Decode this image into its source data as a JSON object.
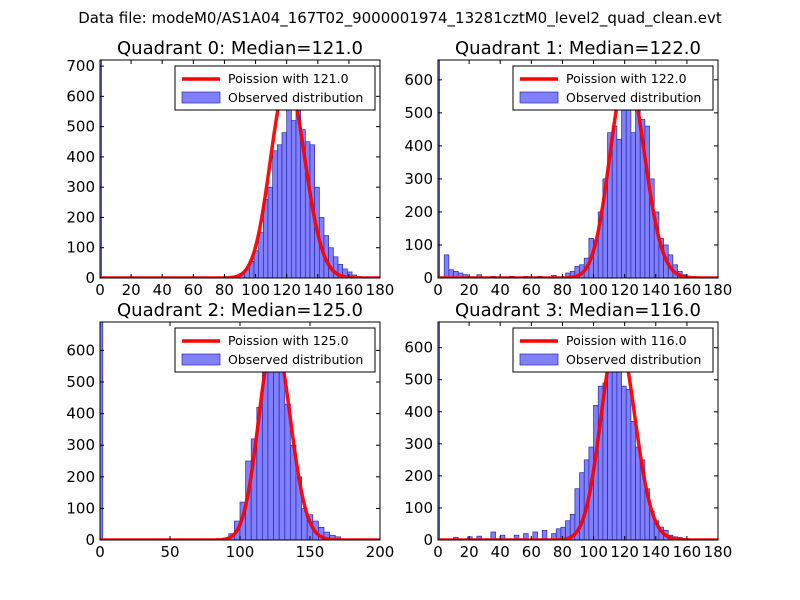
{
  "suptitle": "Data file: modeM0/AS1A04_167T02_9000001974_13281cztM0_level2_quad_clean.evt",
  "colors": {
    "bar_fill": "#7f7fff",
    "bar_edge": "#2b2b9f",
    "poisson_line": "#ff0000",
    "axes": "#000000",
    "background": "#ffffff"
  },
  "chart_data": [
    {
      "type": "bar",
      "title": "Quadrant 0: Median=121.0",
      "median": 121.0,
      "xlim": [
        0,
        180
      ],
      "ylim": [
        0,
        720
      ],
      "xticks": [
        0,
        20,
        40,
        60,
        80,
        100,
        120,
        140,
        160,
        180
      ],
      "yticks": [
        0,
        100,
        200,
        300,
        400,
        500,
        600,
        700
      ],
      "legend": {
        "placement": "top-right",
        "line_label": "Poission with 121.0",
        "bar_label": "Observed distribution"
      },
      "bins": [
        {
          "x0": 0,
          "x1": 1,
          "count": 720
        },
        {
          "x0": 84,
          "x1": 87,
          "count": 5
        },
        {
          "x0": 87,
          "x1": 90,
          "count": 8
        },
        {
          "x0": 90,
          "x1": 93,
          "count": 15
        },
        {
          "x0": 93,
          "x1": 96,
          "count": 28
        },
        {
          "x0": 96,
          "x1": 99,
          "count": 55
        },
        {
          "x0": 99,
          "x1": 102,
          "count": 90
        },
        {
          "x0": 102,
          "x1": 105,
          "count": 150
        },
        {
          "x0": 105,
          "x1": 108,
          "count": 260
        },
        {
          "x0": 108,
          "x1": 111,
          "count": 300
        },
        {
          "x0": 111,
          "x1": 114,
          "count": 420
        },
        {
          "x0": 114,
          "x1": 117,
          "count": 440
        },
        {
          "x0": 117,
          "x1": 120,
          "count": 480
        },
        {
          "x0": 120,
          "x1": 123,
          "count": 650
        },
        {
          "x0": 123,
          "x1": 126,
          "count": 520
        },
        {
          "x0": 126,
          "x1": 129,
          "count": 610
        },
        {
          "x0": 129,
          "x1": 132,
          "count": 490
        },
        {
          "x0": 132,
          "x1": 135,
          "count": 450
        },
        {
          "x0": 135,
          "x1": 138,
          "count": 440
        },
        {
          "x0": 138,
          "x1": 141,
          "count": 300
        },
        {
          "x0": 141,
          "x1": 144,
          "count": 200
        },
        {
          "x0": 144,
          "x1": 147,
          "count": 140
        },
        {
          "x0": 147,
          "x1": 150,
          "count": 100
        },
        {
          "x0": 150,
          "x1": 153,
          "count": 70
        },
        {
          "x0": 153,
          "x1": 156,
          "count": 45
        },
        {
          "x0": 156,
          "x1": 159,
          "count": 30
        },
        {
          "x0": 159,
          "x1": 162,
          "count": 20
        },
        {
          "x0": 162,
          "x1": 165,
          "count": 10
        },
        {
          "x0": 165,
          "x1": 168,
          "count": 5
        }
      ]
    },
    {
      "type": "bar",
      "title": "Quadrant 1: Median=122.0",
      "median": 122.0,
      "xlim": [
        0,
        180
      ],
      "ylim": [
        0,
        660
      ],
      "xticks": [
        0,
        20,
        40,
        60,
        80,
        100,
        120,
        140,
        160,
        180
      ],
      "yticks": [
        0,
        100,
        200,
        300,
        400,
        500,
        600
      ],
      "legend": {
        "placement": "top-right",
        "line_label": "Poission with 122.0",
        "bar_label": "Observed distribution"
      },
      "bins": [
        {
          "x0": 0,
          "x1": 1,
          "count": 660
        },
        {
          "x0": 4,
          "x1": 7,
          "count": 70
        },
        {
          "x0": 7,
          "x1": 10,
          "count": 25
        },
        {
          "x0": 10,
          "x1": 13,
          "count": 20
        },
        {
          "x0": 13,
          "x1": 16,
          "count": 15
        },
        {
          "x0": 16,
          "x1": 19,
          "count": 10
        },
        {
          "x0": 25,
          "x1": 28,
          "count": 10
        },
        {
          "x0": 34,
          "x1": 37,
          "count": 5
        },
        {
          "x0": 46,
          "x1": 49,
          "count": 5
        },
        {
          "x0": 55,
          "x1": 58,
          "count": 5
        },
        {
          "x0": 64,
          "x1": 67,
          "count": 5
        },
        {
          "x0": 73,
          "x1": 76,
          "count": 8
        },
        {
          "x0": 82,
          "x1": 85,
          "count": 15
        },
        {
          "x0": 85,
          "x1": 88,
          "count": 20
        },
        {
          "x0": 88,
          "x1": 91,
          "count": 35
        },
        {
          "x0": 91,
          "x1": 94,
          "count": 40
        },
        {
          "x0": 94,
          "x1": 97,
          "count": 60
        },
        {
          "x0": 97,
          "x1": 100,
          "count": 120
        },
        {
          "x0": 100,
          "x1": 103,
          "count": 115
        },
        {
          "x0": 103,
          "x1": 106,
          "count": 200
        },
        {
          "x0": 106,
          "x1": 109,
          "count": 300
        },
        {
          "x0": 109,
          "x1": 112,
          "count": 440
        },
        {
          "x0": 112,
          "x1": 115,
          "count": 460
        },
        {
          "x0": 115,
          "x1": 118,
          "count": 420
        },
        {
          "x0": 118,
          "x1": 121,
          "count": 540
        },
        {
          "x0": 121,
          "x1": 124,
          "count": 620
        },
        {
          "x0": 124,
          "x1": 127,
          "count": 440
        },
        {
          "x0": 127,
          "x1": 130,
          "count": 620
        },
        {
          "x0": 130,
          "x1": 133,
          "count": 480
        },
        {
          "x0": 133,
          "x1": 136,
          "count": 460
        },
        {
          "x0": 136,
          "x1": 139,
          "count": 300
        },
        {
          "x0": 139,
          "x1": 142,
          "count": 200
        },
        {
          "x0": 142,
          "x1": 145,
          "count": 120
        },
        {
          "x0": 145,
          "x1": 148,
          "count": 100
        },
        {
          "x0": 148,
          "x1": 151,
          "count": 70
        },
        {
          "x0": 151,
          "x1": 154,
          "count": 40
        },
        {
          "x0": 154,
          "x1": 157,
          "count": 20
        },
        {
          "x0": 157,
          "x1": 160,
          "count": 10
        }
      ]
    },
    {
      "type": "bar",
      "title": "Quadrant 2: Median=125.0",
      "median": 125.0,
      "xlim": [
        0,
        200
      ],
      "ylim": [
        0,
        690
      ],
      "xticks": [
        0,
        50,
        100,
        150,
        200
      ],
      "yticks": [
        0,
        100,
        200,
        300,
        400,
        500,
        600
      ],
      "legend": {
        "placement": "top-right",
        "line_label": "Poission with 125.0",
        "bar_label": "Observed distribution"
      },
      "bins": [
        {
          "x0": 0,
          "x1": 2,
          "count": 690
        },
        {
          "x0": 88,
          "x1": 92,
          "count": 5
        },
        {
          "x0": 92,
          "x1": 96,
          "count": 20
        },
        {
          "x0": 96,
          "x1": 100,
          "count": 60
        },
        {
          "x0": 100,
          "x1": 104,
          "count": 120
        },
        {
          "x0": 104,
          "x1": 108,
          "count": 250
        },
        {
          "x0": 108,
          "x1": 112,
          "count": 320
        },
        {
          "x0": 112,
          "x1": 116,
          "count": 420
        },
        {
          "x0": 116,
          "x1": 120,
          "count": 590
        },
        {
          "x0": 120,
          "x1": 124,
          "count": 620
        },
        {
          "x0": 124,
          "x1": 128,
          "count": 640
        },
        {
          "x0": 128,
          "x1": 132,
          "count": 540
        },
        {
          "x0": 132,
          "x1": 136,
          "count": 430
        },
        {
          "x0": 136,
          "x1": 140,
          "count": 300
        },
        {
          "x0": 140,
          "x1": 144,
          "count": 200
        },
        {
          "x0": 144,
          "x1": 148,
          "count": 100
        },
        {
          "x0": 148,
          "x1": 152,
          "count": 80
        },
        {
          "x0": 152,
          "x1": 156,
          "count": 60
        },
        {
          "x0": 156,
          "x1": 160,
          "count": 40
        },
        {
          "x0": 160,
          "x1": 164,
          "count": 25
        },
        {
          "x0": 164,
          "x1": 168,
          "count": 15
        },
        {
          "x0": 168,
          "x1": 172,
          "count": 10
        }
      ]
    },
    {
      "type": "bar",
      "title": "Quadrant 3: Median=116.0",
      "median": 116.0,
      "xlim": [
        0,
        180
      ],
      "ylim": [
        0,
        680
      ],
      "xticks": [
        0,
        20,
        40,
        60,
        80,
        100,
        120,
        140,
        160,
        180
      ],
      "yticks": [
        0,
        100,
        200,
        300,
        400,
        500,
        600
      ],
      "legend": {
        "placement": "top-right",
        "line_label": "Poission with 116.0",
        "bar_label": "Observed distribution"
      },
      "bins": [
        {
          "x0": 0,
          "x1": 1,
          "count": 680
        },
        {
          "x0": 10,
          "x1": 13,
          "count": 8
        },
        {
          "x0": 19,
          "x1": 22,
          "count": 10
        },
        {
          "x0": 25,
          "x1": 28,
          "count": 12
        },
        {
          "x0": 34,
          "x1": 37,
          "count": 25
        },
        {
          "x0": 40,
          "x1": 43,
          "count": 15
        },
        {
          "x0": 49,
          "x1": 52,
          "count": 15
        },
        {
          "x0": 55,
          "x1": 58,
          "count": 20
        },
        {
          "x0": 61,
          "x1": 64,
          "count": 25
        },
        {
          "x0": 67,
          "x1": 70,
          "count": 30
        },
        {
          "x0": 73,
          "x1": 76,
          "count": 20
        },
        {
          "x0": 76,
          "x1": 79,
          "count": 35
        },
        {
          "x0": 79,
          "x1": 82,
          "count": 40
        },
        {
          "x0": 82,
          "x1": 85,
          "count": 60
        },
        {
          "x0": 85,
          "x1": 88,
          "count": 80
        },
        {
          "x0": 88,
          "x1": 91,
          "count": 160
        },
        {
          "x0": 91,
          "x1": 94,
          "count": 210
        },
        {
          "x0": 94,
          "x1": 97,
          "count": 250
        },
        {
          "x0": 97,
          "x1": 100,
          "count": 290
        },
        {
          "x0": 100,
          "x1": 103,
          "count": 420
        },
        {
          "x0": 103,
          "x1": 106,
          "count": 480
        },
        {
          "x0": 106,
          "x1": 109,
          "count": 490
        },
        {
          "x0": 109,
          "x1": 112,
          "count": 560
        },
        {
          "x0": 112,
          "x1": 115,
          "count": 600
        },
        {
          "x0": 115,
          "x1": 118,
          "count": 640
        },
        {
          "x0": 118,
          "x1": 121,
          "count": 480
        },
        {
          "x0": 121,
          "x1": 124,
          "count": 470
        },
        {
          "x0": 124,
          "x1": 127,
          "count": 370
        },
        {
          "x0": 127,
          "x1": 130,
          "count": 290
        },
        {
          "x0": 130,
          "x1": 133,
          "count": 250
        },
        {
          "x0": 133,
          "x1": 136,
          "count": 160
        },
        {
          "x0": 136,
          "x1": 139,
          "count": 90
        },
        {
          "x0": 139,
          "x1": 142,
          "count": 60
        },
        {
          "x0": 142,
          "x1": 145,
          "count": 40
        },
        {
          "x0": 145,
          "x1": 148,
          "count": 30
        },
        {
          "x0": 148,
          "x1": 151,
          "count": 15
        },
        {
          "x0": 151,
          "x1": 154,
          "count": 10
        },
        {
          "x0": 154,
          "x1": 157,
          "count": 8
        }
      ]
    }
  ]
}
